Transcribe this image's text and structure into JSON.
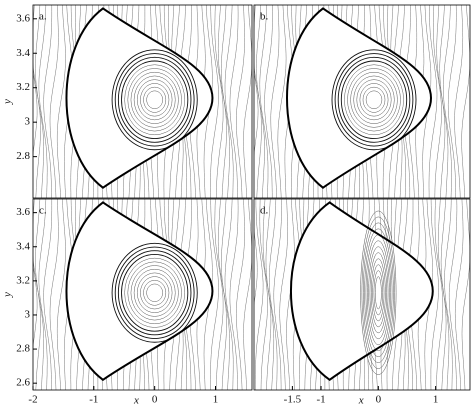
{
  "chart_data": [
    {
      "type": "phase-portrait",
      "label": "a.",
      "ylabel": "y",
      "xlim": [
        -2,
        1.6
      ],
      "ylim": [
        2.56,
        3.68
      ],
      "yticks": [
        2.8,
        3,
        3.2,
        3.4,
        3.6
      ]
    },
    {
      "type": "phase-portrait",
      "label": "b.",
      "xlim": [
        -2,
        1.6
      ],
      "ylim": [
        2.56,
        3.68
      ]
    },
    {
      "type": "phase-portrait",
      "label": "c.",
      "xlabel": "x",
      "ylabel": "y",
      "xlim": [
        -2,
        1.6
      ],
      "ylim": [
        2.56,
        3.68
      ],
      "xticks": [
        -2,
        -1,
        0,
        1
      ],
      "yticks": [
        2.6,
        2.8,
        3,
        3.2,
        3.4,
        3.6
      ]
    },
    {
      "type": "phase-portrait",
      "label": "d.",
      "xlabel": "x",
      "xlim": [
        -2.17,
        1.6
      ],
      "ylim": [
        2.56,
        3.68
      ],
      "xticks": [
        -1.5,
        -1,
        0,
        1
      ]
    }
  ]
}
